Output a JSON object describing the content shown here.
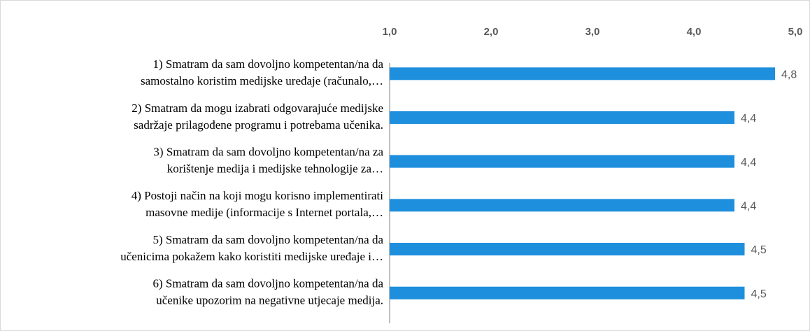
{
  "chart_data": {
    "type": "bar",
    "orientation": "horizontal",
    "categories": [
      [
        "1) Smatram da sam dovoljno kompetentan/na da",
        "samostalno koristim medijske uređaje (računalo,…"
      ],
      [
        "2) Smatram da mogu izabrati odgovarajuće medijske",
        "sadržaje prilagođene programu i potrebama učenika."
      ],
      [
        "3) Smatram da sam dovoljno kompetentan/na za",
        "korištenje medija i medijske tehnologije za…"
      ],
      [
        "4) Postoji način na koji mogu korisno implementirati",
        "masovne medije (informacije s Internet portala,…"
      ],
      [
        "5) Smatram da sam dovoljno kompetentan/na da",
        "učenicima pokažem kako koristiti medijske uređaje i…"
      ],
      [
        "6) Smatram da sam dovoljno kompetentan/na da",
        "učenike upozorim na negativne utjecaje medija."
      ]
    ],
    "values": [
      4.8,
      4.4,
      4.4,
      4.4,
      4.5,
      4.5
    ],
    "value_labels": [
      "4,8",
      "4,4",
      "4,4",
      "4,4",
      "4,5",
      "4,5"
    ],
    "color": "#1e8fdc",
    "xlim": [
      1,
      5
    ],
    "xticks": [
      {
        "value": 1,
        "label": "1,0"
      },
      {
        "value": 2,
        "label": "2,0"
      },
      {
        "value": 3,
        "label": "3,0"
      },
      {
        "value": 4,
        "label": "4,0"
      },
      {
        "value": 5,
        "label": "5,0"
      }
    ],
    "grid": false
  }
}
